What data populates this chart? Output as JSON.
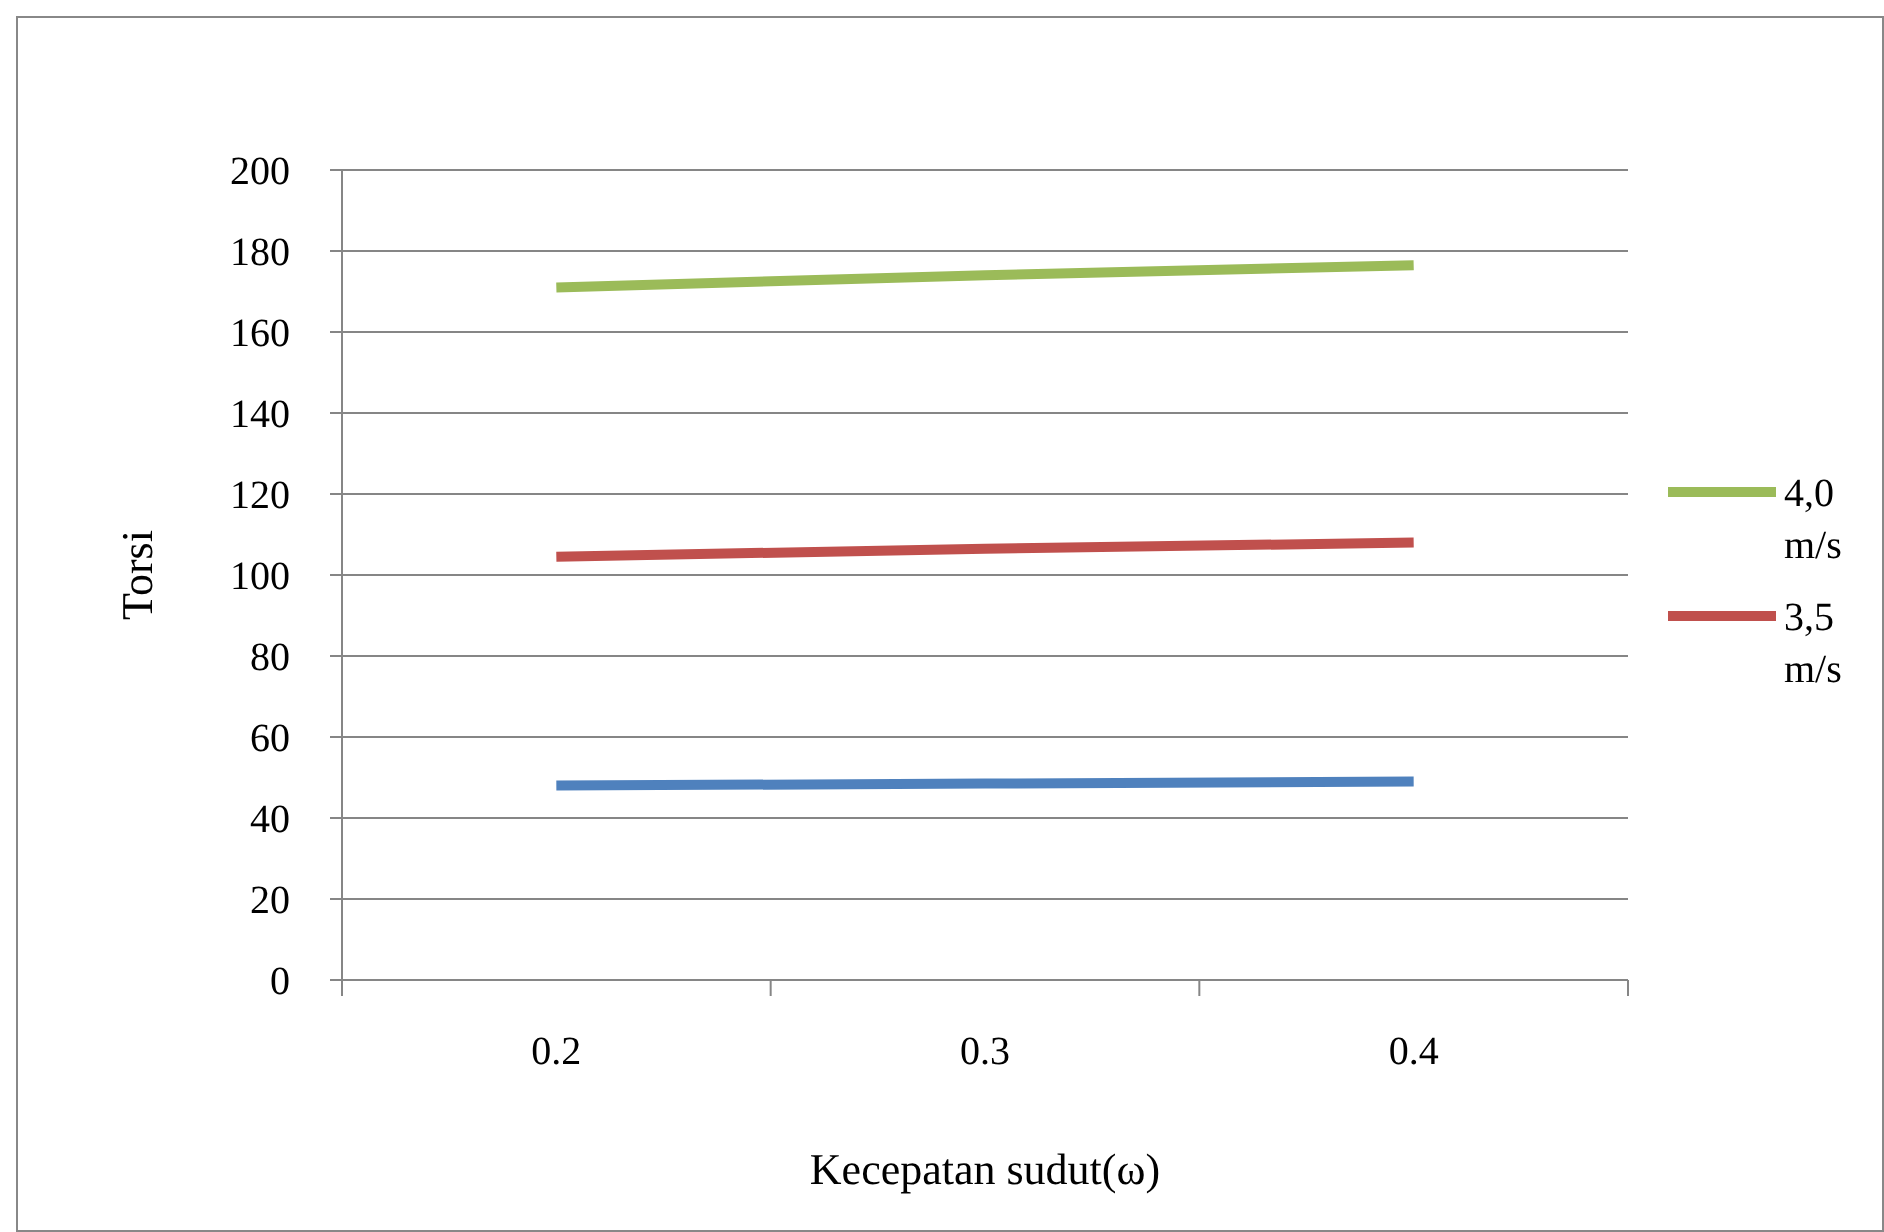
{
  "chart_data": {
    "type": "line",
    "xlabel": "Kecepatan sudut(ω)",
    "ylabel": "Torsi",
    "categories": [
      "0.2",
      "0.3",
      "0.4"
    ],
    "series": [
      {
        "color": "#4f81bd",
        "values": [
          48,
          48.5,
          49
        ]
      },
      {
        "name": "3,5 m/s",
        "color": "#c0504d",
        "values": [
          104.5,
          106.5,
          108
        ]
      },
      {
        "name": "4,0 m/s",
        "color": "#9bbb59",
        "values": [
          171,
          174,
          176.5
        ]
      }
    ],
    "ylim": [
      0,
      200
    ],
    "yticks": [
      0,
      20,
      40,
      60,
      80,
      100,
      120,
      140,
      160,
      180,
      200
    ],
    "grid": "y",
    "legend": "right",
    "marker": "none",
    "line_style": "solid"
  }
}
